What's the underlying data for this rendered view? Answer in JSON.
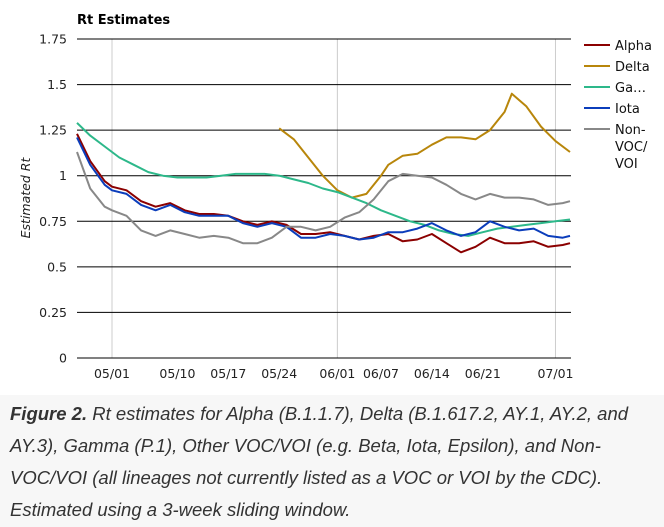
{
  "chart_data": {
    "type": "line",
    "title": "Rt Estimates",
    "xlabel": "",
    "ylabel": "Estimated Rt",
    "ylim": [
      0,
      1.75
    ],
    "yticks": [
      0,
      0.25,
      0.5,
      0.75,
      1,
      1.25,
      1.5,
      1.75
    ],
    "ytick_labels": [
      "0",
      "0.25",
      "0.5",
      "0.75",
      "1",
      "1.25",
      "1.5",
      "1.75"
    ],
    "xlim_day": [
      -5,
      63
    ],
    "xticks_day": [
      0,
      9,
      16,
      23,
      31,
      37,
      44,
      51,
      61
    ],
    "xtick_labels": [
      "05/01",
      "05/10",
      "05/17",
      "05/24",
      "06/01",
      "06/07",
      "06/14",
      "06/21",
      "07/01"
    ],
    "x_day_origin": "05/01",
    "vgrid_days": [
      0,
      31,
      61
    ],
    "grid": true,
    "legend_position": "right",
    "series": [
      {
        "name": "Alpha",
        "color": "#8b0000",
        "x": [
          -5,
          -3,
          -1,
          0,
          2,
          4,
          6,
          8,
          10,
          12,
          14,
          16,
          18,
          20,
          22,
          24,
          26,
          28,
          30,
          32,
          34,
          36,
          38,
          40,
          42,
          44,
          46,
          48,
          50,
          52,
          54,
          56,
          58,
          60,
          62,
          63
        ],
        "values": [
          1.23,
          1.08,
          0.97,
          0.94,
          0.92,
          0.86,
          0.83,
          0.85,
          0.81,
          0.79,
          0.79,
          0.78,
          0.75,
          0.73,
          0.75,
          0.73,
          0.68,
          0.68,
          0.69,
          0.67,
          0.65,
          0.67,
          0.68,
          0.64,
          0.65,
          0.68,
          0.63,
          0.58,
          0.61,
          0.66,
          0.63,
          0.63,
          0.64,
          0.61,
          0.62,
          0.63
        ]
      },
      {
        "name": "Delta",
        "color": "#b8860b",
        "x": [
          23,
          25,
          27,
          29,
          31,
          33,
          35,
          37,
          38,
          40,
          42,
          44,
          46,
          48,
          50,
          52,
          54,
          55,
          57,
          59,
          61,
          63
        ],
        "values": [
          1.26,
          1.2,
          1.1,
          1.0,
          0.92,
          0.88,
          0.9,
          1.0,
          1.06,
          1.11,
          1.12,
          1.17,
          1.21,
          1.21,
          1.2,
          1.25,
          1.35,
          1.45,
          1.38,
          1.27,
          1.19,
          1.13
        ]
      },
      {
        "name": "Gamma",
        "color": "#2db88a",
        "legend_label": "Ga…",
        "x": [
          -5,
          -3,
          -1,
          1,
          3,
          5,
          7,
          9,
          11,
          13,
          15,
          17,
          19,
          21,
          23,
          25,
          27,
          29,
          31,
          33,
          35,
          37,
          39,
          41,
          43,
          45,
          47,
          49,
          51,
          53,
          55,
          57,
          59,
          61,
          63
        ],
        "values": [
          1.29,
          1.22,
          1.16,
          1.1,
          1.06,
          1.02,
          1.0,
          0.99,
          0.99,
          0.99,
          1.0,
          1.01,
          1.01,
          1.01,
          1.0,
          0.98,
          0.96,
          0.93,
          0.91,
          0.88,
          0.85,
          0.81,
          0.78,
          0.75,
          0.73,
          0.7,
          0.68,
          0.67,
          0.69,
          0.71,
          0.72,
          0.73,
          0.74,
          0.75,
          0.76
        ]
      },
      {
        "name": "Iota",
        "color": "#0b3dbb",
        "x": [
          -5,
          -3,
          -1,
          0,
          2,
          4,
          6,
          8,
          10,
          12,
          14,
          16,
          18,
          20,
          22,
          24,
          26,
          28,
          30,
          32,
          34,
          36,
          38,
          40,
          42,
          44,
          46,
          48,
          50,
          52,
          54,
          56,
          58,
          60,
          62,
          63
        ],
        "values": [
          1.21,
          1.06,
          0.95,
          0.92,
          0.9,
          0.84,
          0.81,
          0.84,
          0.8,
          0.78,
          0.78,
          0.78,
          0.74,
          0.72,
          0.74,
          0.72,
          0.66,
          0.66,
          0.68,
          0.67,
          0.65,
          0.66,
          0.69,
          0.69,
          0.71,
          0.74,
          0.7,
          0.67,
          0.69,
          0.75,
          0.72,
          0.7,
          0.71,
          0.67,
          0.66,
          0.67
        ]
      },
      {
        "name": "Non-VOC/VOI",
        "color": "#888888",
        "legend_lines": [
          "Non-",
          "VOC/",
          "VOI"
        ],
        "x": [
          -5,
          -3,
          -1,
          0,
          2,
          4,
          6,
          8,
          10,
          12,
          14,
          16,
          18,
          20,
          22,
          24,
          26,
          28,
          30,
          32,
          34,
          36,
          38,
          40,
          42,
          44,
          46,
          48,
          50,
          52,
          54,
          56,
          58,
          60,
          62,
          63
        ],
        "values": [
          1.13,
          0.93,
          0.83,
          0.81,
          0.78,
          0.7,
          0.67,
          0.7,
          0.68,
          0.66,
          0.67,
          0.66,
          0.63,
          0.63,
          0.66,
          0.72,
          0.72,
          0.7,
          0.72,
          0.77,
          0.8,
          0.87,
          0.97,
          1.01,
          1.0,
          0.99,
          0.95,
          0.9,
          0.87,
          0.9,
          0.88,
          0.88,
          0.87,
          0.84,
          0.85,
          0.86
        ]
      }
    ]
  },
  "caption": {
    "label": "Figure 2.",
    "text": " Rt estimates for Alpha (B.1.1.7), Delta (B.1.617.2, AY.1, AY.2, and AY.3), Gamma (P.1), Other VOC/VOI (e.g. Beta, Iota, Epsilon), and Non-VOC/VOI (all lineages not currently listed as a VOC or VOI by the CDC). Estimated using a 3-week sliding window."
  }
}
